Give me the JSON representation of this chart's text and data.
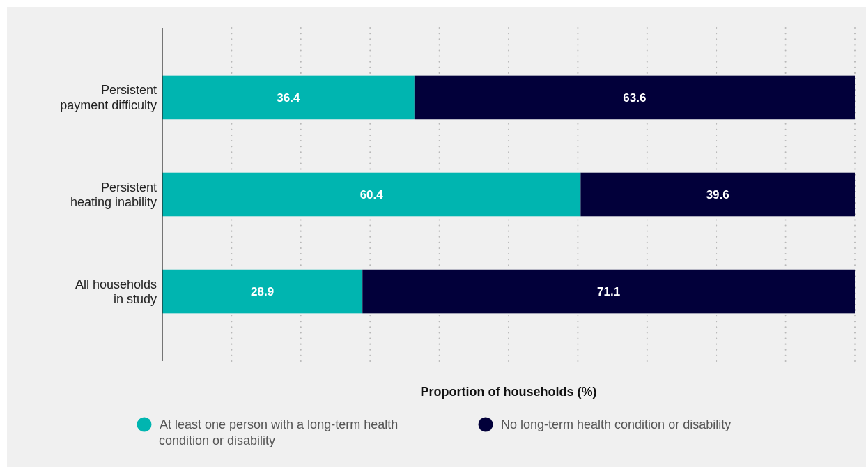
{
  "chart_data": {
    "type": "bar",
    "orientation": "horizontal",
    "stacked": true,
    "xlabel": "Proportion of households (%)",
    "categories": [
      "Persistent payment difficulty",
      "Persistent heating inability",
      "All households in study"
    ],
    "series": [
      {
        "name": "At least one person with a long-term health condition or disability",
        "color": "#00b5b0",
        "values": [
          36.4,
          60.4,
          28.9
        ]
      },
      {
        "name": "No long-term health condition or disability",
        "color": "#02003a",
        "values": [
          63.6,
          39.6,
          71.1
        ]
      }
    ],
    "xlim": [
      0,
      100
    ],
    "xticks": [
      {
        "value": 0,
        "label": null
      },
      {
        "value": 10,
        "label": null
      },
      {
        "value": 20,
        "label": null
      },
      {
        "value": 30,
        "label": null
      },
      {
        "value": 40,
        "label": null
      },
      {
        "value": 50,
        "label": null
      },
      {
        "value": 60,
        "label": null
      },
      {
        "value": 70,
        "label": null
      },
      {
        "value": 80,
        "label": null
      },
      {
        "value": 90,
        "label": null
      },
      {
        "value": 100,
        "label": null
      }
    ],
    "tick_labels": "y",
    "grid": "x",
    "data_labels": true,
    "legend": "bottom"
  }
}
